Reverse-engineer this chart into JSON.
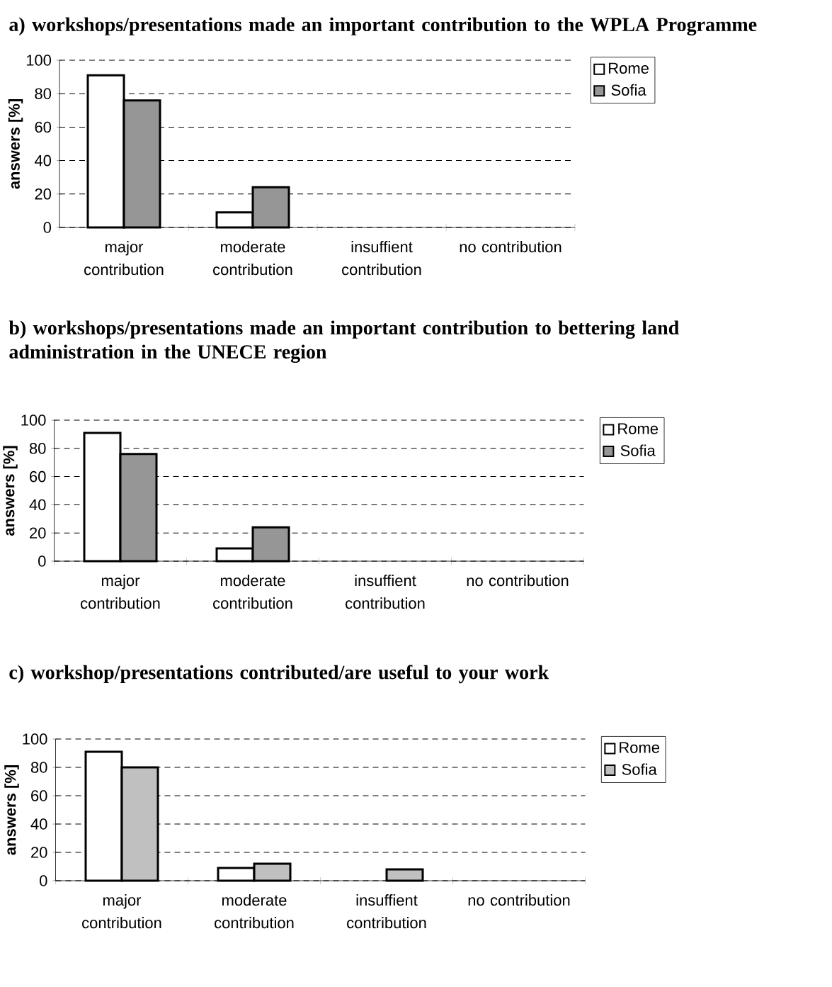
{
  "chart_data": [
    {
      "type": "bar",
      "title": "a) workshops/presentations made an important contribution to the WPLA Programme",
      "ylabel": "answers [%]",
      "categories": [
        "major contribution",
        "moderate contribution",
        "insuffient contribution",
        "no contribution"
      ],
      "series": [
        {
          "name": "Rome",
          "color": "#ffffff",
          "values": [
            91,
            9,
            null,
            null
          ]
        },
        {
          "name": "Sofia",
          "color": "#969696",
          "values": [
            76,
            24,
            null,
            null
          ]
        }
      ],
      "ylim": [
        0,
        100
      ],
      "yticks": [
        0,
        20,
        40,
        60,
        80,
        100
      ],
      "grid": "y",
      "legend": "top right"
    },
    {
      "type": "bar",
      "title": "b) workshops/presentations made an important contribution to bettering land administration in the UNECE region",
      "ylabel": "answers [%]",
      "categories": [
        "major contribution",
        "moderate contribution",
        "insuffient contribution",
        "no contribution"
      ],
      "series": [
        {
          "name": "Rome",
          "color": "#ffffff",
          "values": [
            91,
            9,
            null,
            null
          ]
        },
        {
          "name": "Sofia",
          "color": "#969696",
          "values": [
            76,
            24,
            null,
            null
          ]
        }
      ],
      "ylim": [
        0,
        100
      ],
      "yticks": [
        0,
        20,
        40,
        60,
        80,
        100
      ],
      "grid": "y",
      "legend": "top right"
    },
    {
      "type": "bar",
      "title": "c) workshop/presentations contributed/are useful to your work",
      "ylabel": "answers [%]",
      "categories": [
        "major contribution",
        "moderate contribution",
        "insuffient contribution",
        "no contribution"
      ],
      "series": [
        {
          "name": "Rome",
          "color": "#ffffff",
          "values": [
            91,
            9,
            null,
            null
          ]
        },
        {
          "name": "Sofia",
          "color": "#c0c0c0",
          "values": [
            80,
            12,
            8,
            null
          ]
        }
      ],
      "ylim": [
        0,
        100
      ],
      "yticks": [
        0,
        20,
        40,
        60,
        80,
        100
      ],
      "grid": "y",
      "legend": "top right"
    }
  ]
}
